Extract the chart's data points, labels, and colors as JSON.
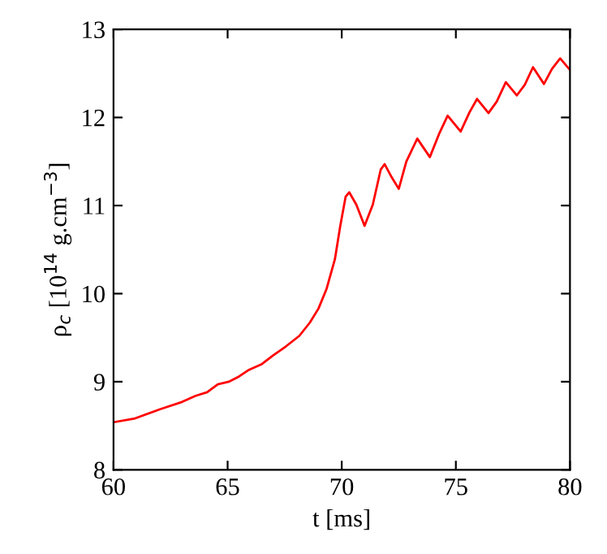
{
  "chart_data": {
    "type": "line",
    "xlabel": "t [ms]",
    "ylabel": "ρ$_{c}$ [10$^{14}$ g.cm$^{−3}$]",
    "xlim": [
      60,
      80
    ],
    "ylim": [
      8,
      13
    ],
    "xticks": [
      60,
      65,
      70,
      75,
      80
    ],
    "yticks": [
      8,
      9,
      10,
      11,
      12,
      13
    ],
    "grid": false,
    "marker": "none",
    "line_style": "solid",
    "series": [
      {
        "color": "#ff0000",
        "x": [
          60,
          60.9,
          62.07,
          63.0,
          63.6,
          64.1,
          64.57,
          65.05,
          65.5,
          65.9,
          66.5,
          67.0,
          67.55,
          68.14,
          68.6,
          68.98,
          69.33,
          69.7,
          69.93,
          70.17,
          70.33,
          70.64,
          71.0,
          71.36,
          71.71,
          71.88,
          72.19,
          72.5,
          72.83,
          73.31,
          73.86,
          74.26,
          74.64,
          75.21,
          75.6,
          75.93,
          76.43,
          76.79,
          77.19,
          77.67,
          78.02,
          78.38,
          78.86,
          79.21,
          79.57,
          80.0
        ],
        "values": [
          8.54,
          8.58,
          8.69,
          8.77,
          8.84,
          8.88,
          8.97,
          9.0,
          9.06,
          9.13,
          9.2,
          9.3,
          9.4,
          9.52,
          9.67,
          9.83,
          10.05,
          10.39,
          10.76,
          11.1,
          11.15,
          11.01,
          10.77,
          11.01,
          11.41,
          11.47,
          11.32,
          11.19,
          11.5,
          11.76,
          11.55,
          11.81,
          12.02,
          11.84,
          12.06,
          12.21,
          12.05,
          12.18,
          12.4,
          12.25,
          12.37,
          12.57,
          12.38,
          12.55,
          12.67,
          12.54
        ]
      }
    ]
  }
}
